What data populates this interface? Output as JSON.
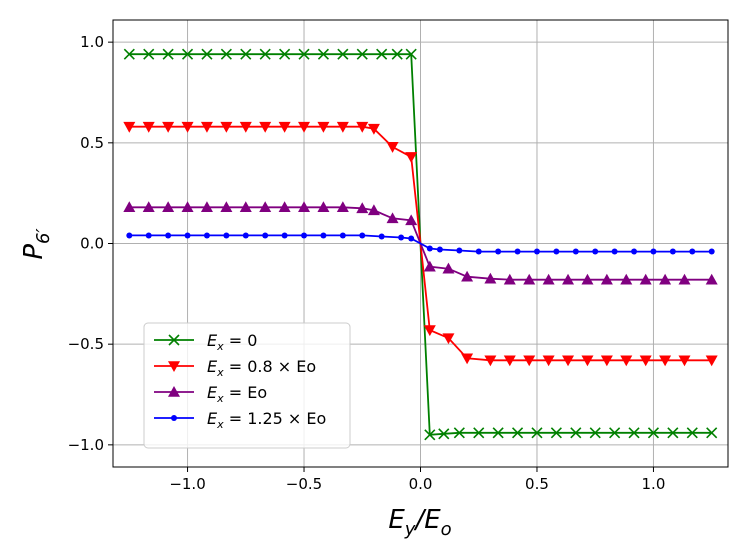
{
  "chart_data": {
    "type": "line",
    "title": "",
    "xlabel": "E_y/E_o",
    "ylabel": "P_6′",
    "xlim": [
      -1.32,
      1.32
    ],
    "ylim": [
      -1.11,
      1.11
    ],
    "grid": true,
    "legend_position": "lower-left",
    "xticks": [
      -1.0,
      -0.5,
      0.0,
      0.5,
      1.0
    ],
    "xtick_labels": [
      "−1.0",
      "−0.5",
      "0.0",
      "0.5",
      "1.0"
    ],
    "yticks": [
      -1.0,
      -0.5,
      0.0,
      0.5,
      1.0
    ],
    "ytick_labels": [
      "−1.0",
      "−0.5",
      "0.0",
      "0.5",
      "1.0"
    ],
    "x": [
      -1.25,
      -1.1667,
      -1.0833,
      -1.0,
      -0.9167,
      -0.8333,
      -0.75,
      -0.6667,
      -0.5833,
      -0.5,
      -0.4167,
      -0.3333,
      -0.25,
      -0.1667,
      -0.0833,
      0.0,
      0.0833,
      0.1667,
      0.25,
      0.3333,
      0.4167,
      0.5,
      0.5833,
      0.6667,
      0.75,
      0.8333,
      0.9167,
      1.0,
      1.0833,
      1.1667,
      1.25
    ],
    "series": [
      {
        "name": "Ex = 0",
        "legend_base": "E",
        "legend_sub": "x",
        "legend_rest": " = 0",
        "color": "#008000",
        "marker": "x",
        "x": [
          -1.25,
          -1.1667,
          -1.0833,
          -1.0,
          -0.9167,
          -0.8333,
          -0.75,
          -0.6667,
          -0.5833,
          -0.5,
          -0.4167,
          -0.3333,
          -0.25,
          -0.1667,
          -0.1,
          -0.04,
          0.04,
          0.1,
          0.1667,
          0.25,
          0.3333,
          0.4167,
          0.5,
          0.5833,
          0.6667,
          0.75,
          0.8333,
          0.9167,
          1.0,
          1.0833,
          1.1667,
          1.25
        ],
        "values": [
          0.94,
          0.94,
          0.94,
          0.94,
          0.94,
          0.94,
          0.94,
          0.94,
          0.94,
          0.94,
          0.94,
          0.94,
          0.94,
          0.94,
          0.94,
          0.94,
          -0.95,
          -0.945,
          -0.94,
          -0.94,
          -0.94,
          -0.94,
          -0.94,
          -0.94,
          -0.94,
          -0.94,
          -0.94,
          -0.94,
          -0.94,
          -0.94,
          -0.94,
          -0.94
        ]
      },
      {
        "name": "Ex = 0.8 × Eo",
        "legend_base": "E",
        "legend_sub": "x",
        "legend_rest": " = 0.8 × Eo",
        "color": "#ff0000",
        "marker": "triangle-down",
        "x": [
          -1.25,
          -1.1667,
          -1.0833,
          -1.0,
          -0.9167,
          -0.8333,
          -0.75,
          -0.6667,
          -0.5833,
          -0.5,
          -0.4167,
          -0.3333,
          -0.25,
          -0.2,
          -0.12,
          -0.04,
          0.04,
          0.12,
          0.2,
          0.3,
          0.3833,
          0.4667,
          0.55,
          0.6333,
          0.7167,
          0.8,
          0.8833,
          0.9667,
          1.05,
          1.1333,
          1.25
        ],
        "values": [
          0.58,
          0.58,
          0.58,
          0.58,
          0.58,
          0.58,
          0.58,
          0.58,
          0.58,
          0.58,
          0.58,
          0.58,
          0.58,
          0.57,
          0.48,
          0.43,
          -0.43,
          -0.47,
          -0.57,
          -0.58,
          -0.58,
          -0.58,
          -0.58,
          -0.58,
          -0.58,
          -0.58,
          -0.58,
          -0.58,
          -0.58,
          -0.58,
          -0.58
        ]
      },
      {
        "name": "Ex = Eo",
        "legend_base": "E",
        "legend_sub": "x",
        "legend_rest": " = Eo",
        "color": "#800080",
        "marker": "triangle-up",
        "x": [
          -1.25,
          -1.1667,
          -1.0833,
          -1.0,
          -0.9167,
          -0.8333,
          -0.75,
          -0.6667,
          -0.5833,
          -0.5,
          -0.4167,
          -0.3333,
          -0.25,
          -0.2,
          -0.12,
          -0.04,
          0.04,
          0.12,
          0.2,
          0.3,
          0.3833,
          0.4667,
          0.55,
          0.6333,
          0.7167,
          0.8,
          0.8833,
          0.9667,
          1.05,
          1.1333,
          1.25
        ],
        "values": [
          0.18,
          0.18,
          0.18,
          0.18,
          0.18,
          0.18,
          0.18,
          0.18,
          0.18,
          0.18,
          0.18,
          0.18,
          0.175,
          0.165,
          0.125,
          0.115,
          -0.115,
          -0.125,
          -0.165,
          -0.175,
          -0.18,
          -0.18,
          -0.18,
          -0.18,
          -0.18,
          -0.18,
          -0.18,
          -0.18,
          -0.18,
          -0.18,
          -0.18
        ]
      },
      {
        "name": "Ex = 1.25 × Eo",
        "legend_base": "E",
        "legend_sub": "x",
        "legend_rest": " = 1.25 × Eo",
        "color": "#0000ff",
        "marker": "dot",
        "x": [
          -1.25,
          -1.1667,
          -1.0833,
          -1.0,
          -0.9167,
          -0.8333,
          -0.75,
          -0.6667,
          -0.5833,
          -0.5,
          -0.4167,
          -0.3333,
          -0.25,
          -0.1667,
          -0.0833,
          -0.04,
          0.04,
          0.0833,
          0.1667,
          0.25,
          0.3333,
          0.4167,
          0.5,
          0.5833,
          0.6667,
          0.75,
          0.8333,
          0.9167,
          1.0,
          1.0833,
          1.1667,
          1.25
        ],
        "values": [
          0.04,
          0.04,
          0.04,
          0.04,
          0.04,
          0.04,
          0.04,
          0.04,
          0.04,
          0.04,
          0.04,
          0.04,
          0.04,
          0.035,
          0.03,
          0.025,
          -0.025,
          -0.03,
          -0.035,
          -0.04,
          -0.04,
          -0.04,
          -0.04,
          -0.04,
          -0.04,
          -0.04,
          -0.04,
          -0.04,
          -0.04,
          -0.04,
          -0.04,
          -0.04
        ]
      }
    ]
  }
}
